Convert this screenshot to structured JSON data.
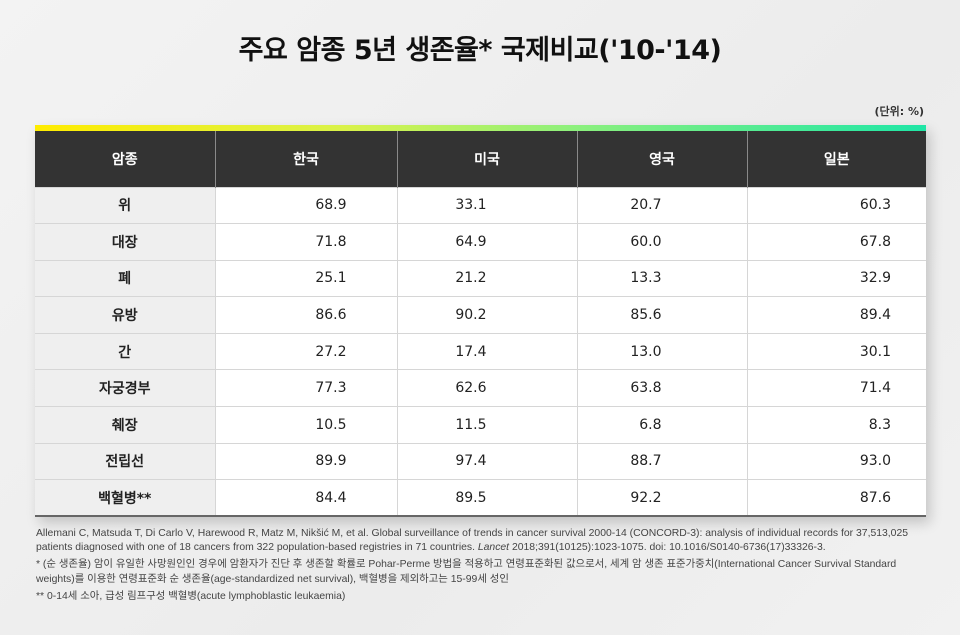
{
  "title": "주요 암종 5년 생존율* 국제비교('10-'14)",
  "unit": "(단위: %)",
  "colors": {
    "header_bg": "#333333",
    "gradient": [
      "#ffec00",
      "#d9f24a",
      "#8ef07c",
      "#1fe6a6"
    ],
    "name_col_bg": "#efefef"
  },
  "table": {
    "headers": [
      "암종",
      "한국",
      "미국",
      "영국",
      "일본"
    ],
    "rows": [
      {
        "name": "위",
        "kr": "68.9",
        "us": "33.1",
        "uk": "20.7",
        "jp": "60.3"
      },
      {
        "name": "대장",
        "kr": "71.8",
        "us": "64.9",
        "uk": "60.0",
        "jp": "67.8"
      },
      {
        "name": "폐",
        "kr": "25.1",
        "us": "21.2",
        "uk": "13.3",
        "jp": "32.9"
      },
      {
        "name": "유방",
        "kr": "86.6",
        "us": "90.2",
        "uk": "85.6",
        "jp": "89.4"
      },
      {
        "name": "간",
        "kr": "27.2",
        "us": "17.4",
        "uk": "13.0",
        "jp": "30.1"
      },
      {
        "name": "자궁경부",
        "kr": "77.3",
        "us": "62.6",
        "uk": "63.8",
        "jp": "71.4"
      },
      {
        "name": "췌장",
        "kr": "10.5",
        "us": "11.5",
        "uk": "6.8",
        "jp": "8.3"
      },
      {
        "name": "전립선",
        "kr": "89.9",
        "us": "97.4",
        "uk": "88.7",
        "jp": "93.0"
      },
      {
        "name": "백혈병**",
        "kr": "84.4",
        "us": "89.5",
        "uk": "92.2",
        "jp": "87.6"
      }
    ]
  },
  "notes": {
    "citation_pre": "Allemani C, Matsuda T, Di Carlo V, Harewood R, Matz M, Nikšić M, et al. Global surveillance of trends in cancer survival 2000-14 (CONCORD-3): analysis of individual records for 37,513,025 patients diagnosed with one of 18 cancers from 322 population-based registries in 71 countries. ",
    "citation_journal": "Lancet",
    "citation_post": " 2018;391(10125):1023-1075. doi: 10.1016/S0140-6736(17)33326-3.",
    "footnote1": "* (순 생존율) 암이 유일한 사망원인인 경우에 암환자가 진단 후 생존할 확률로 Pohar-Perme 방법을 적용하고 연령표준화된 값으로서, 세계 암 생존 표준가중치(International Cancer Survival Standard weights)를 이용한 연령표준화 순 생존율(age-standardized net survival), 백혈병을 제외하고는 15-99세 성인",
    "footnote2": "** 0-14세 소아, 급성 림프구성 백혈병(acute lymphoblastic leukaemia)"
  }
}
